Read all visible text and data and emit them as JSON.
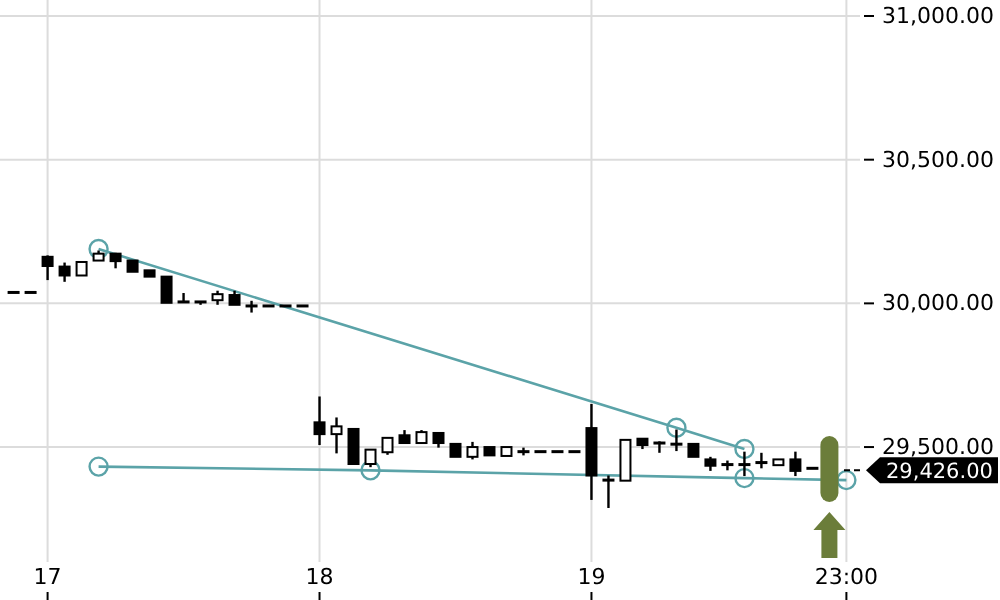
{
  "chart_data": {
    "type": "candlestick",
    "categories": [
      null,
      null,
      "17",
      null,
      null,
      null,
      null,
      null,
      null,
      null,
      null,
      null,
      null,
      null,
      null,
      null,
      null,
      null,
      "18",
      null,
      null,
      null,
      null,
      null,
      null,
      null,
      null,
      null,
      null,
      null,
      null,
      null,
      null,
      null,
      "19",
      null,
      null,
      null,
      null,
      null,
      null,
      null,
      null,
      null,
      null,
      null,
      null,
      null,
      null,
      "23:00"
    ],
    "ohlc": [
      [
        30038,
        30038,
        30038,
        30038
      ],
      [
        30038,
        30038,
        30038,
        30038
      ],
      [
        30162,
        30167,
        30081,
        30130
      ],
      [
        30128,
        30142,
        30075,
        30097
      ],
      [
        30097,
        30144,
        30097,
        30144
      ],
      [
        30149,
        30184,
        30149,
        30173
      ],
      [
        30173,
        30176,
        30122,
        30147
      ],
      [
        30149,
        30149,
        30110,
        30110
      ],
      [
        30115,
        30115,
        30093,
        30093
      ],
      [
        30093,
        30093,
        30002,
        30002
      ],
      [
        30005,
        30036,
        30005,
        30005
      ],
      [
        30005,
        30005,
        29995,
        30005
      ],
      [
        30011,
        30044,
        29995,
        30032
      ],
      [
        30029,
        30044,
        29995,
        29995
      ],
      [
        29991,
        30009,
        29968,
        29991
      ],
      [
        29991,
        29991,
        29991,
        29991
      ],
      [
        29991,
        29991,
        29991,
        29991
      ],
      [
        29991,
        29991,
        29991,
        29991
      ],
      [
        29586,
        29676,
        29507,
        29545
      ],
      [
        29545,
        29603,
        29478,
        29572
      ],
      [
        29563,
        29563,
        29441,
        29441
      ],
      [
        29441,
        29491,
        29430,
        29491
      ],
      [
        29482,
        29532,
        29473,
        29532
      ],
      [
        29541,
        29559,
        29514,
        29514
      ],
      [
        29514,
        29559,
        29514,
        29552
      ],
      [
        29549,
        29549,
        29498,
        29514
      ],
      [
        29511,
        29511,
        29466,
        29466
      ],
      [
        29466,
        29518,
        29457,
        29500
      ],
      [
        29500,
        29500,
        29471,
        29471
      ],
      [
        29469,
        29500,
        29469,
        29500
      ],
      [
        29484,
        29498,
        29471,
        29484
      ],
      [
        29484,
        29484,
        29484,
        29484
      ],
      [
        29484,
        29484,
        29484,
        29484
      ],
      [
        29484,
        29484,
        29484,
        29484
      ],
      [
        29566,
        29650,
        29316,
        29401
      ],
      [
        29385,
        29401,
        29288,
        29385
      ],
      [
        29383,
        29525,
        29383,
        29525
      ],
      [
        29529,
        29529,
        29493,
        29507
      ],
      [
        29514,
        29520,
        29480,
        29514
      ],
      [
        29510,
        29561,
        29486,
        29510
      ],
      [
        29511,
        29511,
        29466,
        29466
      ],
      [
        29457,
        29466,
        29417,
        29435
      ],
      [
        29439,
        29453,
        29419,
        29439
      ],
      [
        29439,
        29484,
        29399,
        29439
      ],
      [
        29446,
        29480,
        29426,
        29446
      ],
      [
        29437,
        29457,
        29437,
        29457
      ],
      [
        29457,
        29484,
        29399,
        29417
      ],
      [
        29426,
        29426,
        29426,
        29426
      ],
      null,
      null
    ],
    "series": [
      {
        "type": "line",
        "color": "#5ba3a8",
        "marker": "circle",
        "values": [
          null,
          null,
          null,
          null,
          null,
          30189,
          null,
          null,
          null,
          null,
          null,
          null,
          null,
          null,
          null,
          null,
          null,
          null,
          null,
          null,
          null,
          null,
          null,
          null,
          null,
          null,
          null,
          null,
          null,
          null,
          null,
          null,
          null,
          null,
          null,
          null,
          null,
          null,
          null,
          29567,
          null,
          null,
          null,
          29493,
          null,
          null,
          null,
          null,
          null,
          null
        ]
      },
      {
        "type": "line",
        "color": "#5ba3a8",
        "marker": "circle",
        "values": [
          null,
          null,
          null,
          null,
          null,
          29432,
          null,
          null,
          null,
          null,
          null,
          null,
          null,
          null,
          null,
          null,
          null,
          null,
          null,
          null,
          null,
          29419,
          null,
          null,
          null,
          null,
          null,
          null,
          null,
          null,
          null,
          null,
          null,
          null,
          null,
          null,
          null,
          null,
          null,
          null,
          null,
          null,
          null,
          29392,
          null,
          null,
          null,
          null,
          null,
          29385
        ]
      }
    ],
    "ylim": [
      29100,
      31000
    ],
    "yticks": [
      {
        "value": 29500,
        "label": "29,500.00"
      },
      {
        "value": 30000,
        "label": "30,000.00"
      },
      {
        "value": 30500,
        "label": "30,500.00"
      },
      {
        "value": 31000,
        "label": "31,000.00"
      }
    ],
    "grid": true,
    "ref_lines": [
      {
        "axis": "y",
        "value": 29426,
        "label": "29,426.00",
        "color": "#000000"
      }
    ]
  }
}
